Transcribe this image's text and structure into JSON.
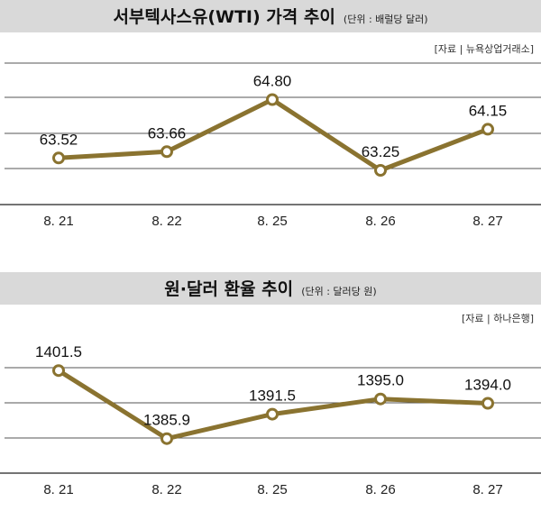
{
  "chart_data": [
    {
      "type": "line",
      "title": "서부텍사스유(WTI) 가격 추이",
      "unit": "(단위 : 배럴당 달러)",
      "source": "[자료 | 뉴욕상업거래소]",
      "categories": [
        "8. 21",
        "8. 22",
        "8. 25",
        "8. 26",
        "8. 27"
      ],
      "values": [
        63.52,
        63.66,
        64.8,
        63.25,
        64.15
      ],
      "value_labels": [
        "63.52",
        "63.66",
        "64.80",
        "63.25",
        "64.15"
      ],
      "ylim": [
        62.5,
        65.6
      ],
      "grid": true,
      "color": "#8a7330"
    },
    {
      "type": "line",
      "title": "원·달러 환율 추이",
      "unit": "(단위 : 달러당 원)",
      "source": "[자료 | 하나은행]",
      "categories": [
        "8. 21",
        "8. 22",
        "8. 25",
        "8. 26",
        "8. 27"
      ],
      "values": [
        1401.5,
        1385.9,
        1391.5,
        1395.0,
        1394.0
      ],
      "value_labels": [
        "1401.5",
        "1385.9",
        "1391.5",
        "1395.0",
        "1394.0"
      ],
      "ylim": [
        1378,
        1410
      ],
      "grid": true,
      "color": "#8a7330"
    }
  ]
}
